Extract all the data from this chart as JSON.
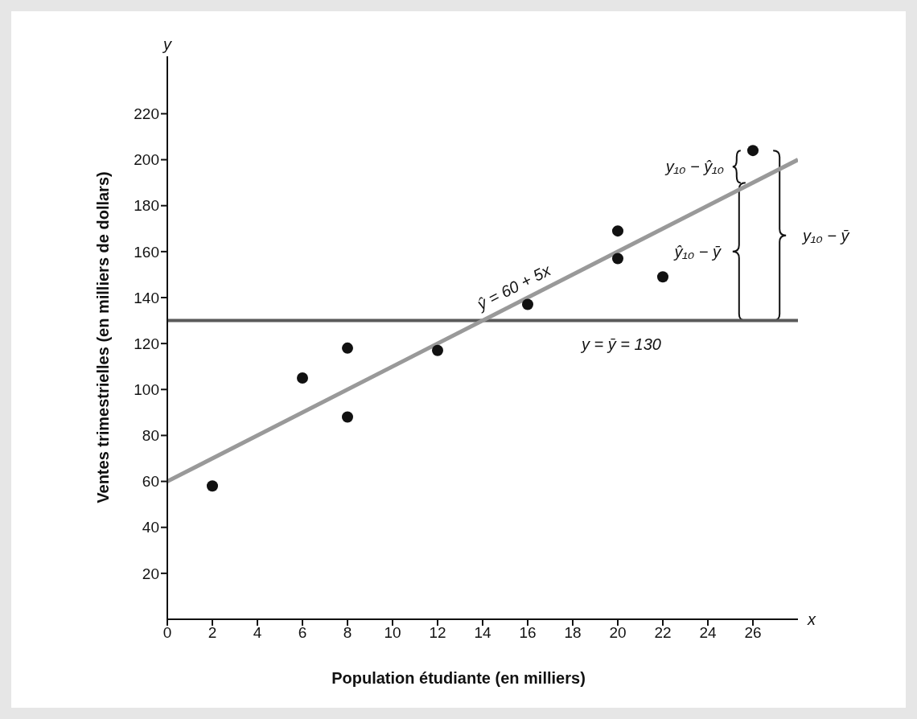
{
  "chart_data": {
    "type": "scatter",
    "xlabel": "Population étudiante (en milliers)",
    "ylabel": "Ventes trimestrielles (en milliers de dollars)",
    "xlim": [
      0,
      28
    ],
    "xticks": [
      0,
      2,
      4,
      6,
      8,
      10,
      12,
      14,
      16,
      18,
      20,
      22,
      24,
      26
    ],
    "ylim": [
      0,
      245
    ],
    "yticks": [
      20,
      40,
      60,
      80,
      100,
      120,
      140,
      160,
      180,
      200,
      220
    ],
    "series": [
      {
        "type": "scatter",
        "marker": "circle",
        "color": "#111111",
        "x": [
          2,
          6,
          8,
          8,
          12,
          16,
          20,
          20,
          22,
          26
        ],
        "values": [
          58,
          105,
          88,
          118,
          117,
          137,
          157,
          169,
          149,
          204
        ]
      },
      {
        "type": "line",
        "marker": "none",
        "color": "#999999",
        "x": [
          0,
          28
        ],
        "values": [
          60,
          200
        ]
      }
    ],
    "ref_lines": [
      {
        "axis": "y",
        "value": 130,
        "label": "y = ȳ = 130",
        "color": "#5a5a5a"
      }
    ],
    "annotations": [
      {
        "text": "ŷ = 60 + 5x",
        "x": 15.5,
        "y": 137.5
      },
      "y₁₀ − ŷ₁₀",
      "ŷ₁₀ − ȳ",
      "y₁₀ − ȳ",
      "x",
      "y"
    ]
  }
}
